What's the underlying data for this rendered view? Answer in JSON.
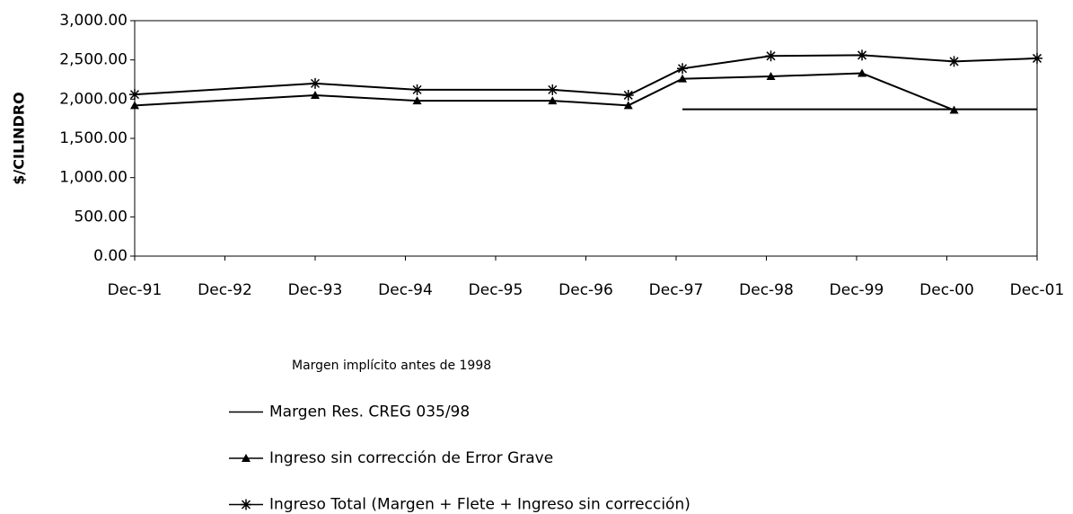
{
  "chart_data": {
    "type": "line",
    "ylabel": "$/CILINDRO",
    "xlim": [
      1991,
      2001
    ],
    "xticks": [
      {
        "value": 1991,
        "label": "Dec-91"
      },
      {
        "value": 1992,
        "label": "Dec-92"
      },
      {
        "value": 1993,
        "label": "Dec-93"
      },
      {
        "value": 1994,
        "label": "Dec-94"
      },
      {
        "value": 1995,
        "label": "Dec-95"
      },
      {
        "value": 1996,
        "label": "Dec-96"
      },
      {
        "value": 1997,
        "label": "Dec-97"
      },
      {
        "value": 1998,
        "label": "Dec-98"
      },
      {
        "value": 1999,
        "label": "Dec-99"
      },
      {
        "value": 2000,
        "label": "Dec-00"
      },
      {
        "value": 2001,
        "label": "Dec-01"
      }
    ],
    "ylim": [
      0,
      3000
    ],
    "yticks": [
      {
        "value": 0,
        "label": "0.00"
      },
      {
        "value": 500,
        "label": "500.00"
      },
      {
        "value": 1000,
        "label": "1,000.00"
      },
      {
        "value": 1500,
        "label": "1,500.00"
      },
      {
        "value": 2000,
        "label": "2,000.00"
      },
      {
        "value": 2500,
        "label": "2,500.00"
      },
      {
        "value": 3000,
        "label": "3,000.00"
      }
    ],
    "series": [
      {
        "name": "Margen implícito antes de 1998",
        "color": "#ffffff",
        "marker": "none",
        "x": [],
        "values": []
      },
      {
        "name": "Margen  Res. CREG 035/98",
        "color": "#000000",
        "marker": "none",
        "x": [
          1997.07,
          2001
        ],
        "values": [
          1870,
          1870
        ]
      },
      {
        "name": "Ingreso sin corrección de Error Grave",
        "color": "#000000",
        "marker": "triangle",
        "x": [
          1991,
          1993,
          1994.13,
          1995.63,
          1996.47,
          1997.07,
          1998.05,
          1999.06,
          2000.08
        ],
        "values": [
          1920,
          2050,
          1980,
          1980,
          1920,
          2260,
          2290,
          2330,
          1860
        ]
      },
      {
        "name": "Ingreso Total (Margen + Flete + Ingreso sin corrección)",
        "color": "#000000",
        "marker": "star",
        "x": [
          1991,
          1993,
          1994.13,
          1995.63,
          1996.47,
          1997.07,
          1998.05,
          1999.06,
          2000.08,
          2001
        ],
        "values": [
          2060,
          2200,
          2120,
          2120,
          2050,
          2390,
          2550,
          2560,
          2480,
          2520
        ]
      }
    ]
  }
}
